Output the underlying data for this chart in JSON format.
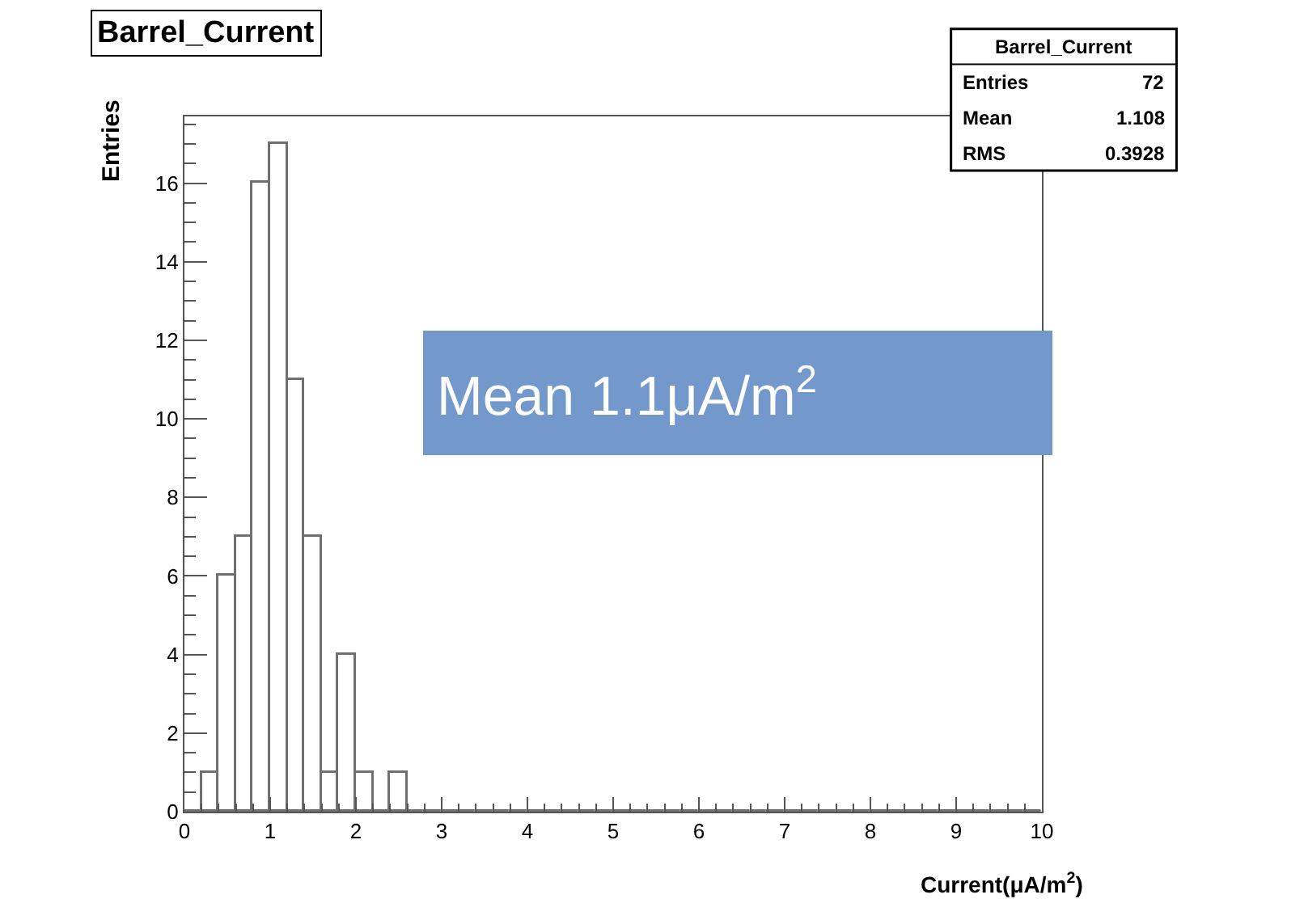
{
  "chart_data": {
    "type": "histogram",
    "title": "Barrel_Current",
    "xlabel": "Current(μA/m$^{2}$)",
    "ylabel": "Entries",
    "bins": [
      0,
      0.2,
      0.4,
      0.6,
      0.8,
      1.0,
      1.2,
      1.4,
      1.6,
      1.8,
      2.0,
      2.2,
      2.4,
      2.6,
      2.8,
      3.0,
      3.2,
      3.4,
      3.6,
      3.8,
      4.0,
      4.2,
      4.4,
      4.6,
      4.8,
      5.0,
      5.2,
      5.4,
      5.6,
      5.8,
      6.0,
      6.2,
      6.4,
      6.6,
      6.8,
      7.0,
      7.2,
      7.4,
      7.6,
      7.8,
      8.0,
      8.2,
      8.4,
      8.6,
      8.8,
      9.0,
      9.2,
      9.4,
      9.6,
      9.8,
      10.0
    ],
    "values": [
      0,
      1,
      6,
      7,
      16,
      17,
      11,
      7,
      1,
      4,
      1,
      0,
      1,
      0,
      0,
      0,
      0,
      0,
      0,
      0,
      0,
      0,
      0,
      0,
      0,
      0,
      0,
      0,
      0,
      0,
      0,
      0,
      0,
      0,
      0,
      0,
      0,
      0,
      0,
      0,
      0,
      0,
      0,
      0,
      0,
      0,
      0,
      0,
      0,
      0
    ],
    "color": "#707070",
    "xlim": [
      0,
      10
    ],
    "xticks": [
      0,
      1,
      2,
      3,
      4,
      5,
      6,
      7,
      8,
      9,
      10
    ],
    "ylim": [
      0,
      17.7
    ],
    "yticks": [
      0,
      2,
      4,
      6,
      8,
      10,
      12,
      14,
      16
    ],
    "annotations": [
      "Barrel_Current",
      "Entries 72",
      "Mean 1.108",
      "RMS 0.3928",
      "Mean 1.1μA/m$^{2}$"
    ]
  }
}
